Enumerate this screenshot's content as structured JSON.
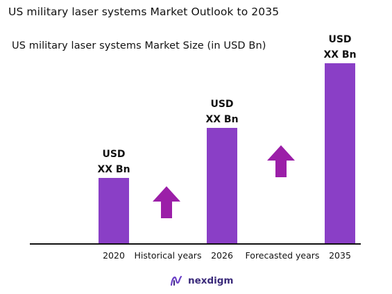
{
  "title": "US military laser systems Market Outlook to 2035",
  "subtitle": "US military laser systems Market Size (in USD Bn)",
  "colors": {
    "bar": "#8a3fc6",
    "arrow": "#9b1fa8",
    "axis": "#111111"
  },
  "chart_data": {
    "type": "bar",
    "categories": [
      "2020",
      "2026",
      "2035"
    ],
    "values": [
      95,
      167,
      260
    ],
    "value_labels": [
      [
        "USD",
        "XX Bn"
      ],
      [
        "USD",
        "XX Bn"
      ],
      [
        "USD",
        "XX Bn"
      ]
    ],
    "ylim": [
      0,
      265
    ],
    "period_labels": [
      "Historical years",
      "Forecasted years"
    ],
    "grid": false,
    "legend": "none"
  },
  "logo": {
    "text": "nexdigm",
    "icon": "nexdigm-logo-icon"
  }
}
